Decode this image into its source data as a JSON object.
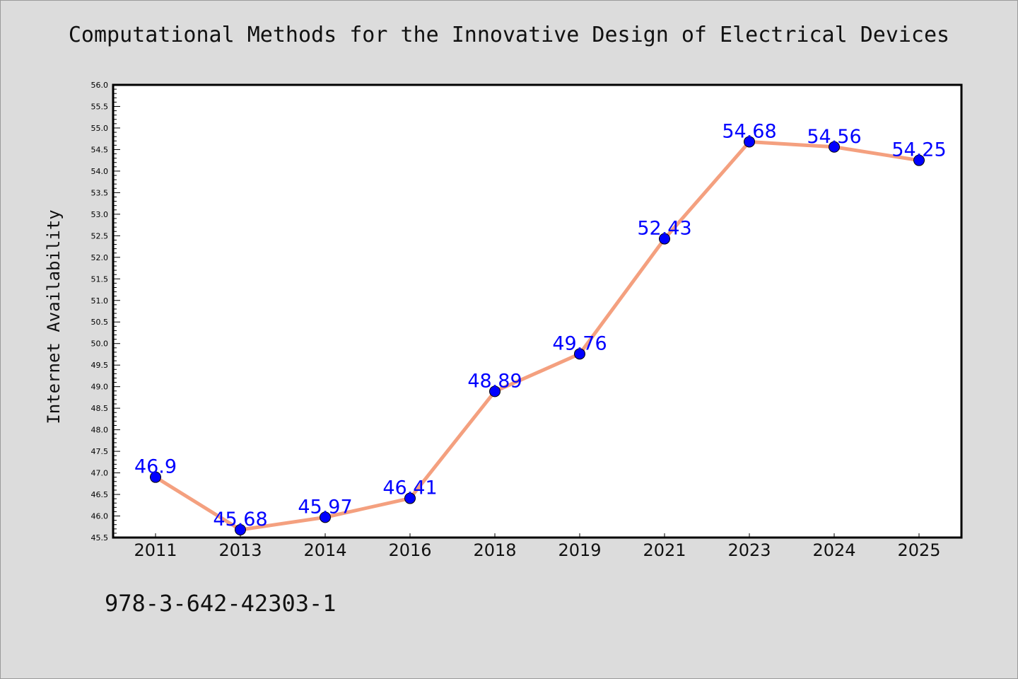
{
  "page": {
    "title": "Computational Methods for the Innovative Design of Electrical Devices",
    "footer_code": "978-3-642-42303-1"
  },
  "colors": {
    "background": "#dcdcdc",
    "plot_area": "#ffffff",
    "line": "#f4a07f",
    "marker": "#0000ff",
    "data_label": "#0000ff"
  },
  "chart_data": {
    "type": "line",
    "title": "Computational Methods for the Innovative Design of Electrical Devices",
    "xlabel": "",
    "ylabel": "Internet Availability",
    "categories": [
      "2011",
      "2013",
      "2014",
      "2016",
      "2018",
      "2019",
      "2021",
      "2023",
      "2024",
      "2025"
    ],
    "series": [
      {
        "values": [
          46.9,
          45.68,
          45.97,
          46.41,
          48.89,
          49.76,
          52.43,
          54.68,
          54.56,
          54.25
        ],
        "labels": [
          "46.9",
          "45.68",
          "45.97",
          "46.41",
          "48.89",
          "49.76",
          "52.43",
          "54.68",
          "54.56",
          "54.25"
        ]
      }
    ],
    "ylim": [
      45.5,
      56.0
    ],
    "y_ticks": [
      "45.5",
      "46.0",
      "46.5",
      "47.0",
      "47.5",
      "48.0",
      "48.5",
      "49.0",
      "49.5",
      "50.0",
      "50.5",
      "51.0",
      "51.5",
      "52.0",
      "52.5",
      "53.0",
      "53.5",
      "54.0",
      "54.5",
      "55.0",
      "55.5",
      "56.0"
    ],
    "grid": false,
    "legend": "none"
  }
}
